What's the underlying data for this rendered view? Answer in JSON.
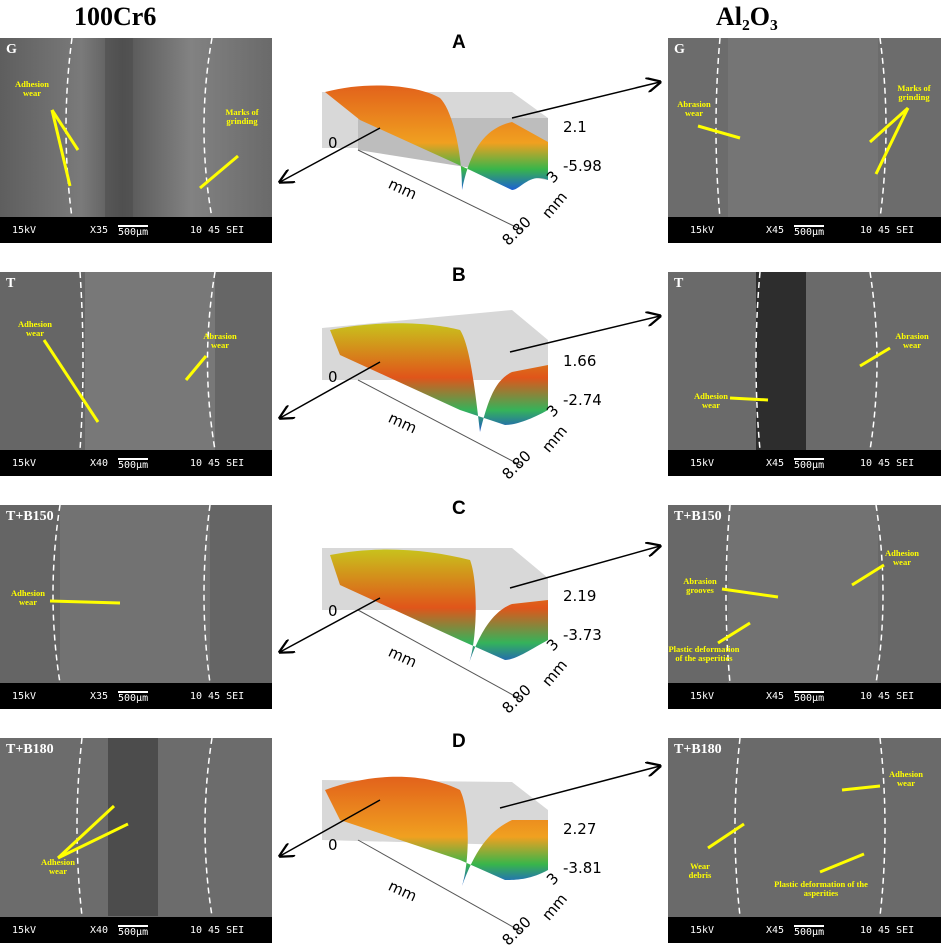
{
  "columns": {
    "left": "100Cr6",
    "right": "Al₂O₃"
  },
  "rows": [
    {
      "letter": "A",
      "left": {
        "label": "G",
        "kv": "15kV",
        "mag": "X35",
        "scale": "500μm",
        "code": "10 45 SEI",
        "annotations": [
          "Adhesion wear",
          "Marks of grinding"
        ]
      },
      "right": {
        "label": "G",
        "kv": "15kV",
        "mag": "X45",
        "scale": "500μm",
        "code": "10 45 SEI",
        "annotations": [
          "Abrasion wear",
          "Marks of grinding"
        ]
      },
      "plot": {
        "zmax": "2.1",
        "zmin": "-5.98",
        "origin": "0",
        "x_label": "mm",
        "y_label": "mm",
        "x_max": "8.80",
        "y_max": "3"
      }
    },
    {
      "letter": "B",
      "left": {
        "label": "T",
        "kv": "15kV",
        "mag": "X40",
        "scale": "500μm",
        "code": "10 45 SEI",
        "annotations": [
          "Adhesion wear",
          "Abrasion wear"
        ]
      },
      "right": {
        "label": "T",
        "kv": "15kV",
        "mag": "X45",
        "scale": "500μm",
        "code": "10 45 SEI",
        "annotations": [
          "Adhesion wear",
          "Abrasion wear"
        ]
      },
      "plot": {
        "zmax": "1.66",
        "zmin": "-2.74",
        "origin": "0",
        "x_label": "mm",
        "y_label": "mm",
        "x_max": "8.80",
        "y_max": "3"
      }
    },
    {
      "letter": "C",
      "left": {
        "label": "T+B150",
        "kv": "15kV",
        "mag": "X35",
        "scale": "500μm",
        "code": "10 45 SEI",
        "annotations": [
          "Adhesion wear"
        ]
      },
      "right": {
        "label": "T+B150",
        "kv": "15kV",
        "mag": "X45",
        "scale": "500μm",
        "code": "10 45 SEI",
        "annotations": [
          "Abrasion grooves",
          "Plastic deformation of the asperities",
          "Adhesion wear"
        ]
      },
      "plot": {
        "zmax": "2.19",
        "zmin": "-3.73",
        "origin": "0",
        "x_label": "mm",
        "y_label": "mm",
        "x_max": "8.80",
        "y_max": "3"
      }
    },
    {
      "letter": "D",
      "left": {
        "label": "T+B180",
        "kv": "15kV",
        "mag": "X40",
        "scale": "500μm",
        "code": "10 45 SEI",
        "annotations": [
          "Adhesion wear"
        ]
      },
      "right": {
        "label": "T+B180",
        "kv": "15kV",
        "mag": "X45",
        "scale": "500μm",
        "code": "10 45 SEI",
        "annotations": [
          "Wear debris",
          "Adhesion wear",
          "Plastic deformation of the asperities"
        ]
      },
      "plot": {
        "zmax": "2.27",
        "zmin": "-3.81",
        "origin": "0",
        "x_label": "mm",
        "y_label": "mm",
        "x_max": "8.80",
        "y_max": "3"
      }
    }
  ],
  "colors": {
    "annotation": "#ffff00",
    "sem_gray": "#6e6e6e",
    "databar": "#000000"
  }
}
